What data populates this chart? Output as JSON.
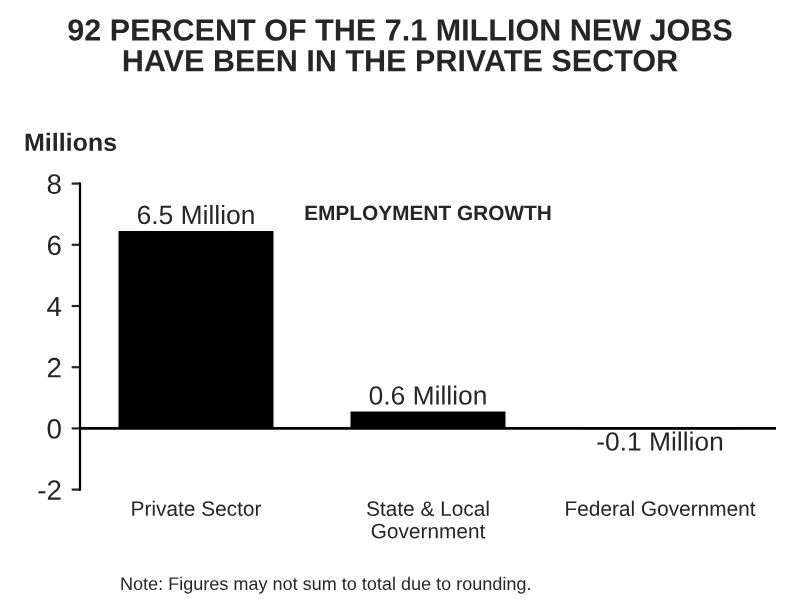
{
  "chart_data": {
    "type": "bar",
    "title": "92 PERCENT OF THE 7.1 MILLION NEW JOBS\nHAVE BEEN IN THE PRIVATE SECTOR",
    "subtitle": "EMPLOYMENT GROWTH",
    "ylabel": "Millions",
    "categories": [
      "Private Sector",
      "State & Local\nGovernment",
      "Federal Government"
    ],
    "values": [
      6.5,
      0.6,
      -0.1
    ],
    "value_labels": [
      "6.5 Million",
      "0.6 Million",
      "-0.1 Million"
    ],
    "color": "#000000",
    "ylim": [
      -2,
      8
    ],
    "yticks": [
      -2,
      0,
      2,
      4,
      6,
      8
    ],
    "ref_lines": [
      {
        "axis": "y",
        "value": 0,
        "color": "#000000"
      }
    ],
    "annotations": [
      "Note: Figures may not sum to total due to rounding."
    ],
    "grid": false,
    "legend": false
  }
}
